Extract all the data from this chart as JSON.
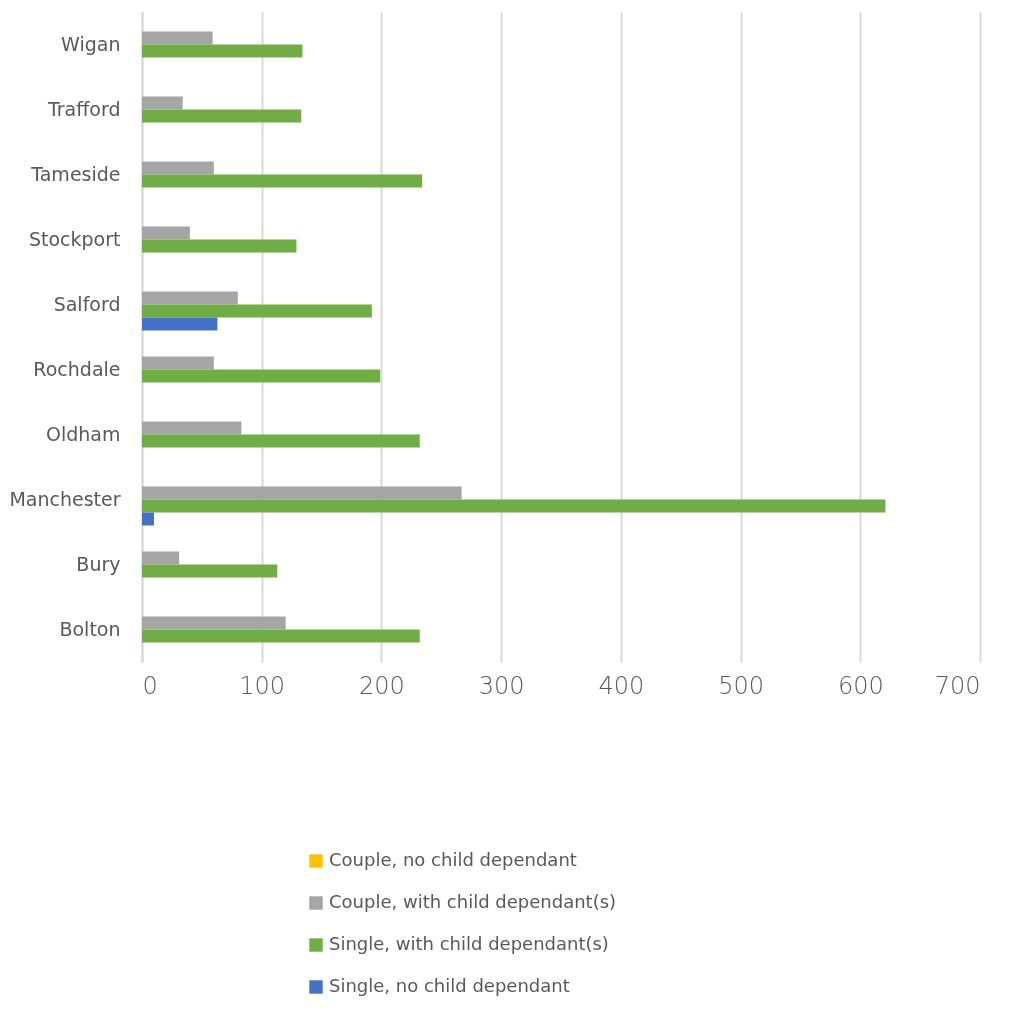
{
  "chart_data": {
    "type": "bar",
    "orientation": "horizontal",
    "categories": [
      "Wigan",
      "Trafford",
      "Tameside",
      "Stockport",
      "Salford",
      "Rochdale",
      "Oldham",
      "Manchester",
      "Bury",
      "Bolton"
    ],
    "series": [
      {
        "name": "Couple, no child dependant",
        "color": "#ffc000",
        "values": [
          0,
          0,
          0,
          0,
          0,
          0,
          0,
          0,
          0,
          0
        ]
      },
      {
        "name": "Couple, with child dependant(s)",
        "color": "#a5a5a5",
        "values": [
          59,
          34,
          60,
          40,
          80,
          60,
          83,
          267,
          31,
          120
        ]
      },
      {
        "name": "Single, with child dependant(s)",
        "color": "#70ad47",
        "values": [
          134,
          133,
          234,
          129,
          192,
          199,
          232,
          621,
          113,
          232
        ]
      },
      {
        "name": "Single, no child dependant",
        "color": "#4472c4",
        "values": [
          0,
          0,
          0,
          0,
          63,
          0,
          0,
          10,
          0,
          0
        ]
      }
    ],
    "xlim": [
      0,
      700
    ],
    "xticks": [
      0,
      100,
      200,
      300,
      400,
      500,
      600,
      700
    ],
    "grid": "x",
    "legend": "bottom"
  }
}
